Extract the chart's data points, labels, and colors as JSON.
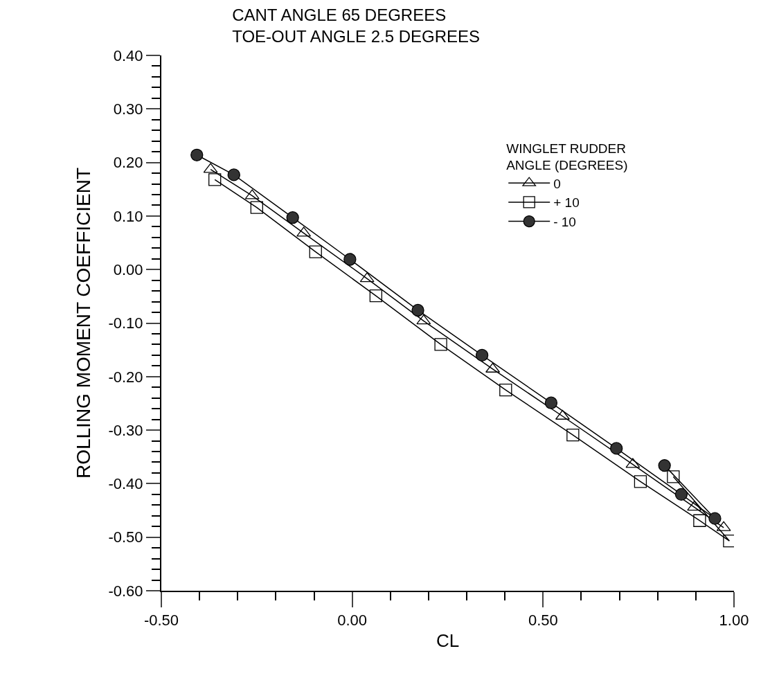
{
  "chart_data": {
    "type": "line",
    "title": "CANT ANGLE 65 DEGREES\nTOE-OUT ANGLE 2.5 DEGREES",
    "xlabel": "CL",
    "ylabel": "ROLLING MOMENT COEFFICIENT",
    "legend_title": "WINGLET RUDDER\nANGLE (DEGREES)",
    "legend": "top right",
    "line_style": "solid",
    "xlim": [
      -0.5,
      1.0
    ],
    "xticks": [
      {
        "value": -0.5,
        "label": "-0.50"
      },
      {
        "value": -0.4,
        "label": null
      },
      {
        "value": -0.3,
        "label": null
      },
      {
        "value": -0.2,
        "label": null
      },
      {
        "value": -0.1,
        "label": null
      },
      {
        "value": 0.0,
        "label": "0.00"
      },
      {
        "value": 0.1,
        "label": null
      },
      {
        "value": 0.2,
        "label": null
      },
      {
        "value": 0.3,
        "label": null
      },
      {
        "value": 0.4,
        "label": null
      },
      {
        "value": 0.5,
        "label": "0.50"
      },
      {
        "value": 0.6,
        "label": null
      },
      {
        "value": 0.7,
        "label": null
      },
      {
        "value": 0.8,
        "label": null
      },
      {
        "value": 0.9,
        "label": null
      },
      {
        "value": 1.0,
        "label": "1.00"
      }
    ],
    "ylim": [
      -0.6,
      0.4
    ],
    "yticks": [
      {
        "value": -0.6,
        "label": "-0.60"
      },
      {
        "value": -0.5,
        "label": "-0.50"
      },
      {
        "value": -0.4,
        "label": "-0.40"
      },
      {
        "value": -0.3,
        "label": "-0.30"
      },
      {
        "value": -0.2,
        "label": "-0.20"
      },
      {
        "value": -0.1,
        "label": "-0.10"
      },
      {
        "value": 0.0,
        "label": "0.00"
      },
      {
        "value": 0.1,
        "label": "0.10"
      },
      {
        "value": 0.2,
        "label": "0.20"
      },
      {
        "value": 0.3,
        "label": "0.30"
      },
      {
        "value": 0.4,
        "label": "0.40"
      }
    ],
    "series": [
      {
        "name": "0",
        "color": "#000000",
        "marker": "triangle",
        "x": [
          -0.371,
          -0.262,
          -0.127,
          0.039,
          0.187,
          0.368,
          0.551,
          0.735,
          0.896,
          0.973
        ],
        "values": [
          0.187,
          0.138,
          0.068,
          -0.017,
          -0.096,
          -0.186,
          -0.274,
          -0.364,
          -0.444,
          -0.482
        ]
      },
      {
        "name": "+ 10",
        "color": "#000000",
        "marker": "square",
        "x": [
          -0.36,
          -0.25,
          -0.096,
          0.062,
          0.232,
          0.402,
          0.578,
          0.755,
          0.91,
          0.988,
          0.841
        ],
        "values": [
          0.168,
          0.116,
          0.033,
          -0.049,
          -0.14,
          -0.225,
          -0.309,
          -0.396,
          -0.469,
          -0.507,
          -0.387
        ]
      },
      {
        "name": "- 10",
        "color": "#333333",
        "marker": "circle",
        "x": [
          -0.407,
          -0.31,
          -0.156,
          -0.006,
          0.172,
          0.34,
          0.521,
          0.692,
          0.862,
          0.95,
          0.818
        ],
        "values": [
          0.214,
          0.177,
          0.097,
          0.019,
          -0.076,
          -0.16,
          -0.249,
          -0.334,
          -0.42,
          -0.465,
          -0.366
        ]
      }
    ]
  }
}
